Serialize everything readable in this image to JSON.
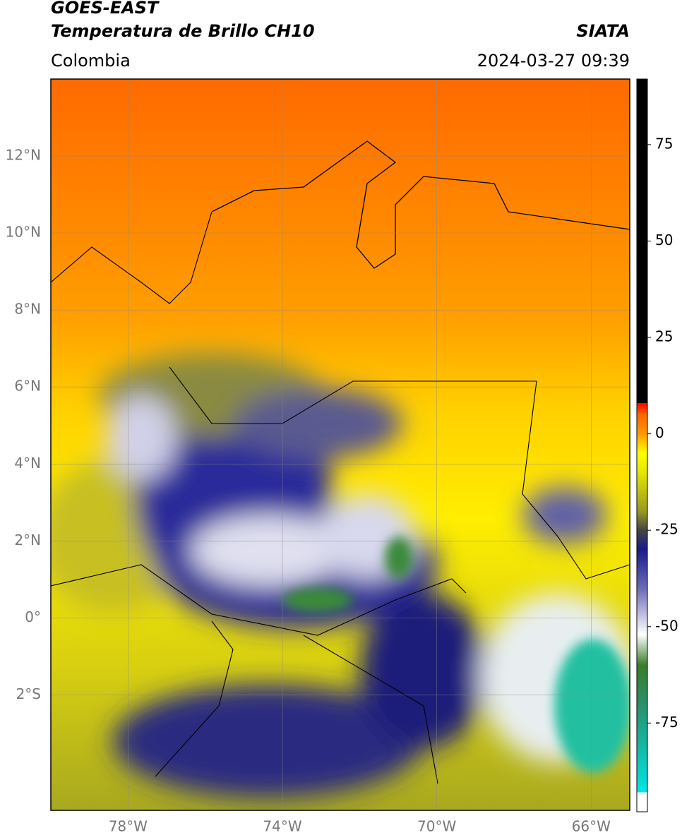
{
  "header": {
    "title": "GOES-EAST",
    "subtitle": "Temperatura de Brillo CH10",
    "source": "SIATA",
    "region": "Colombia",
    "datetime": "2024-03-27 09:39"
  },
  "map": {
    "lonlim": [
      -80,
      -65
    ],
    "latlim": [
      -5,
      14
    ],
    "xticks": [
      {
        "value": -78,
        "label": "78°W"
      },
      {
        "value": -74,
        "label": "74°W"
      },
      {
        "value": -70,
        "label": "70°W"
      },
      {
        "value": -66,
        "label": "66°W"
      }
    ],
    "yticks": [
      {
        "value": 12,
        "label": "12°N"
      },
      {
        "value": 10,
        "label": "10°N"
      },
      {
        "value": 8,
        "label": "8°N"
      },
      {
        "value": 6,
        "label": "6°N"
      },
      {
        "value": 4,
        "label": "4°N"
      },
      {
        "value": 2,
        "label": "2°N"
      },
      {
        "value": 0,
        "label": "0°"
      },
      {
        "value": -2,
        "label": "2°S"
      }
    ],
    "grid": true
  },
  "colorbar": {
    "range": [
      -98,
      92
    ],
    "ticks": [
      75,
      50,
      25,
      0,
      -25,
      -50,
      -75
    ],
    "stops": [
      {
        "value": -98,
        "color": "#ffffff"
      },
      {
        "value": -93,
        "color": "#ffffff"
      },
      {
        "value": -93,
        "color": "#00e5e5"
      },
      {
        "value": -70,
        "color": "#2a8f6a"
      },
      {
        "value": -60,
        "color": "#3a7d2a"
      },
      {
        "value": -52,
        "color": "#ffffff"
      },
      {
        "value": -40,
        "color": "#6a6ab8"
      },
      {
        "value": -30,
        "color": "#1a1a8a"
      },
      {
        "value": -25,
        "color": "#444444"
      },
      {
        "value": -20,
        "color": "#9a9a20"
      },
      {
        "value": -10,
        "color": "#e6e600"
      },
      {
        "value": -5,
        "color": "#ffff00"
      },
      {
        "value": 0,
        "color": "#ff9900"
      },
      {
        "value": 5,
        "color": "#ff6600"
      },
      {
        "value": 8,
        "color": "#ff0000"
      },
      {
        "value": 8,
        "color": "#000000"
      },
      {
        "value": 92,
        "color": "#000000"
      }
    ]
  }
}
